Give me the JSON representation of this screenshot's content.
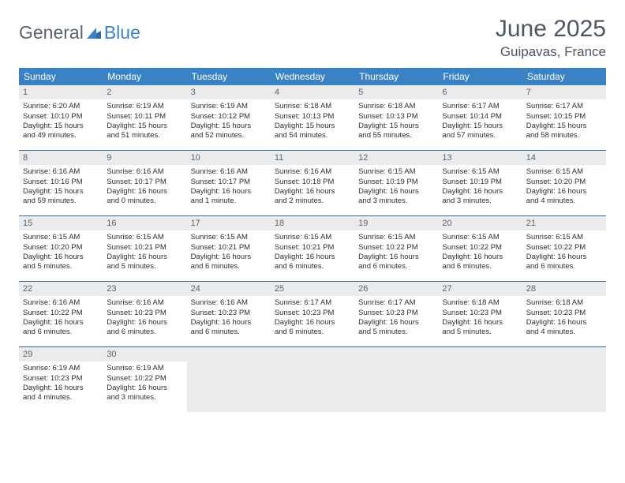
{
  "logo": {
    "text1": "General",
    "text2": "Blue"
  },
  "title": "June 2025",
  "location": "Guipavas, France",
  "colors": {
    "header_bg": "#3b82c4",
    "header_text": "#ffffff",
    "divider": "#3b6a9a",
    "daynum_bg": "#e9ebed",
    "text": "#333333"
  },
  "daynames": [
    "Sunday",
    "Monday",
    "Tuesday",
    "Wednesday",
    "Thursday",
    "Friday",
    "Saturday"
  ],
  "weeks": [
    [
      {
        "n": "1",
        "sr": "Sunrise: 6:20 AM",
        "ss": "Sunset: 10:10 PM",
        "d1": "Daylight: 15 hours",
        "d2": "and 49 minutes."
      },
      {
        "n": "2",
        "sr": "Sunrise: 6:19 AM",
        "ss": "Sunset: 10:11 PM",
        "d1": "Daylight: 15 hours",
        "d2": "and 51 minutes."
      },
      {
        "n": "3",
        "sr": "Sunrise: 6:19 AM",
        "ss": "Sunset: 10:12 PM",
        "d1": "Daylight: 15 hours",
        "d2": "and 52 minutes."
      },
      {
        "n": "4",
        "sr": "Sunrise: 6:18 AM",
        "ss": "Sunset: 10:13 PM",
        "d1": "Daylight: 15 hours",
        "d2": "and 54 minutes."
      },
      {
        "n": "5",
        "sr": "Sunrise: 6:18 AM",
        "ss": "Sunset: 10:13 PM",
        "d1": "Daylight: 15 hours",
        "d2": "and 55 minutes."
      },
      {
        "n": "6",
        "sr": "Sunrise: 6:17 AM",
        "ss": "Sunset: 10:14 PM",
        "d1": "Daylight: 15 hours",
        "d2": "and 57 minutes."
      },
      {
        "n": "7",
        "sr": "Sunrise: 6:17 AM",
        "ss": "Sunset: 10:15 PM",
        "d1": "Daylight: 15 hours",
        "d2": "and 58 minutes."
      }
    ],
    [
      {
        "n": "8",
        "sr": "Sunrise: 6:16 AM",
        "ss": "Sunset: 10:16 PM",
        "d1": "Daylight: 15 hours",
        "d2": "and 59 minutes."
      },
      {
        "n": "9",
        "sr": "Sunrise: 6:16 AM",
        "ss": "Sunset: 10:17 PM",
        "d1": "Daylight: 16 hours",
        "d2": "and 0 minutes."
      },
      {
        "n": "10",
        "sr": "Sunrise: 6:16 AM",
        "ss": "Sunset: 10:17 PM",
        "d1": "Daylight: 16 hours",
        "d2": "and 1 minute."
      },
      {
        "n": "11",
        "sr": "Sunrise: 6:16 AM",
        "ss": "Sunset: 10:18 PM",
        "d1": "Daylight: 16 hours",
        "d2": "and 2 minutes."
      },
      {
        "n": "12",
        "sr": "Sunrise: 6:15 AM",
        "ss": "Sunset: 10:19 PM",
        "d1": "Daylight: 16 hours",
        "d2": "and 3 minutes."
      },
      {
        "n": "13",
        "sr": "Sunrise: 6:15 AM",
        "ss": "Sunset: 10:19 PM",
        "d1": "Daylight: 16 hours",
        "d2": "and 3 minutes."
      },
      {
        "n": "14",
        "sr": "Sunrise: 6:15 AM",
        "ss": "Sunset: 10:20 PM",
        "d1": "Daylight: 16 hours",
        "d2": "and 4 minutes."
      }
    ],
    [
      {
        "n": "15",
        "sr": "Sunrise: 6:15 AM",
        "ss": "Sunset: 10:20 PM",
        "d1": "Daylight: 16 hours",
        "d2": "and 5 minutes."
      },
      {
        "n": "16",
        "sr": "Sunrise: 6:15 AM",
        "ss": "Sunset: 10:21 PM",
        "d1": "Daylight: 16 hours",
        "d2": "and 5 minutes."
      },
      {
        "n": "17",
        "sr": "Sunrise: 6:15 AM",
        "ss": "Sunset: 10:21 PM",
        "d1": "Daylight: 16 hours",
        "d2": "and 6 minutes."
      },
      {
        "n": "18",
        "sr": "Sunrise: 6:15 AM",
        "ss": "Sunset: 10:21 PM",
        "d1": "Daylight: 16 hours",
        "d2": "and 6 minutes."
      },
      {
        "n": "19",
        "sr": "Sunrise: 6:15 AM",
        "ss": "Sunset: 10:22 PM",
        "d1": "Daylight: 16 hours",
        "d2": "and 6 minutes."
      },
      {
        "n": "20",
        "sr": "Sunrise: 6:15 AM",
        "ss": "Sunset: 10:22 PM",
        "d1": "Daylight: 16 hours",
        "d2": "and 6 minutes."
      },
      {
        "n": "21",
        "sr": "Sunrise: 6:15 AM",
        "ss": "Sunset: 10:22 PM",
        "d1": "Daylight: 16 hours",
        "d2": "and 6 minutes."
      }
    ],
    [
      {
        "n": "22",
        "sr": "Sunrise: 6:16 AM",
        "ss": "Sunset: 10:22 PM",
        "d1": "Daylight: 16 hours",
        "d2": "and 6 minutes."
      },
      {
        "n": "23",
        "sr": "Sunrise: 6:16 AM",
        "ss": "Sunset: 10:23 PM",
        "d1": "Daylight: 16 hours",
        "d2": "and 6 minutes."
      },
      {
        "n": "24",
        "sr": "Sunrise: 6:16 AM",
        "ss": "Sunset: 10:23 PM",
        "d1": "Daylight: 16 hours",
        "d2": "and 6 minutes."
      },
      {
        "n": "25",
        "sr": "Sunrise: 6:17 AM",
        "ss": "Sunset: 10:23 PM",
        "d1": "Daylight: 16 hours",
        "d2": "and 6 minutes."
      },
      {
        "n": "26",
        "sr": "Sunrise: 6:17 AM",
        "ss": "Sunset: 10:23 PM",
        "d1": "Daylight: 16 hours",
        "d2": "and 5 minutes."
      },
      {
        "n": "27",
        "sr": "Sunrise: 6:18 AM",
        "ss": "Sunset: 10:23 PM",
        "d1": "Daylight: 16 hours",
        "d2": "and 5 minutes."
      },
      {
        "n": "28",
        "sr": "Sunrise: 6:18 AM",
        "ss": "Sunset: 10:23 PM",
        "d1": "Daylight: 16 hours",
        "d2": "and 4 minutes."
      }
    ],
    [
      {
        "n": "29",
        "sr": "Sunrise: 6:19 AM",
        "ss": "Sunset: 10:23 PM",
        "d1": "Daylight: 16 hours",
        "d2": "and 4 minutes."
      },
      {
        "n": "30",
        "sr": "Sunrise: 6:19 AM",
        "ss": "Sunset: 10:22 PM",
        "d1": "Daylight: 16 hours",
        "d2": "and 3 minutes."
      },
      null,
      null,
      null,
      null,
      null
    ]
  ]
}
